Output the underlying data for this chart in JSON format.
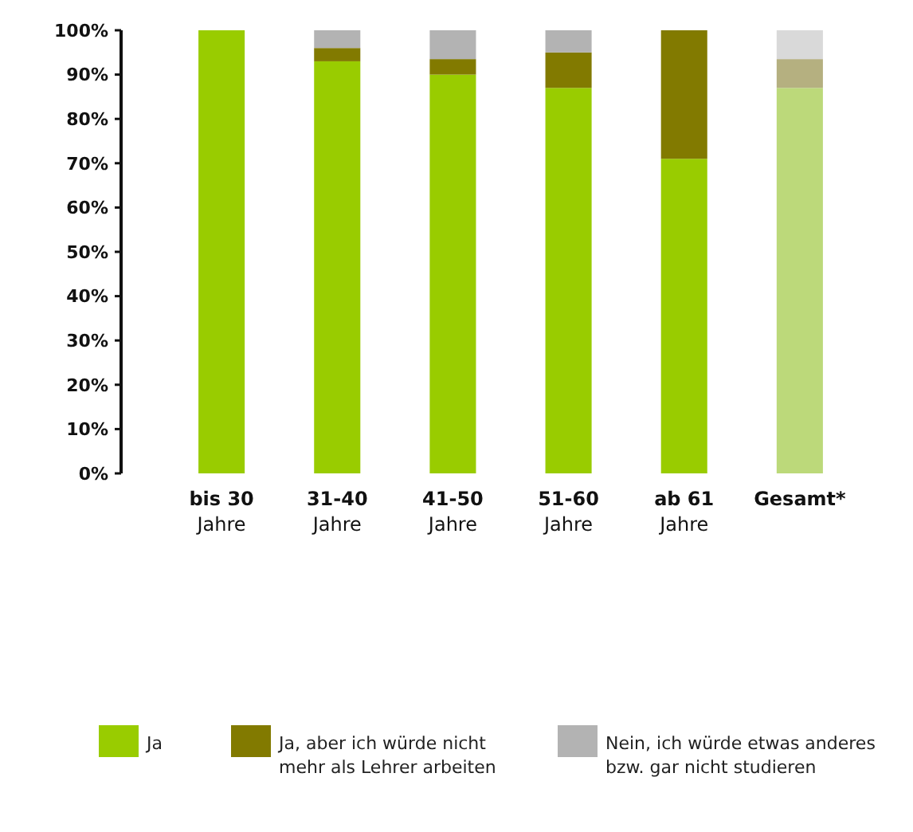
{
  "chart_data": {
    "type": "bar",
    "stacked": true,
    "categories": [
      "bis 30\nJahre",
      "31-40\nJahre",
      "41-50\nJahre",
      "51-60\nJahre",
      "ab 61\nJahre",
      "Gesamt*"
    ],
    "series": [
      {
        "name": "Ja",
        "color": "#99cc00",
        "colors": [
          "#99cc00",
          "#99cc00",
          "#99cc00",
          "#99cc00",
          "#99cc00",
          "#bcd97a"
        ],
        "values": [
          100,
          93,
          90,
          87,
          71,
          87
        ]
      },
      {
        "name": "Ja, aber ich würde nicht\nmehr als Lehrer arbeiten",
        "color": "#827a00",
        "colors": [
          "#827a00",
          "#827a00",
          "#827a00",
          "#827a00",
          "#827a00",
          "#b5b080"
        ],
        "values": [
          0,
          3,
          3.5,
          8,
          29,
          6.5
        ]
      },
      {
        "name": "Nein, ich würde etwas anderes\nbzw. gar nicht studieren",
        "color": "#b3b3b3",
        "colors": [
          "#b3b3b3",
          "#b3b3b3",
          "#b3b3b3",
          "#b3b3b3",
          "#b3b3b3",
          "#d9d9d9"
        ],
        "values": [
          0,
          4,
          6.5,
          5,
          0,
          6.5
        ]
      }
    ],
    "ylim": [
      0,
      100
    ],
    "yticks": [
      {
        "value": 0,
        "label": "0%"
      },
      {
        "value": 10,
        "label": "10%"
      },
      {
        "value": 20,
        "label": "20%"
      },
      {
        "value": 30,
        "label": "30%"
      },
      {
        "value": 40,
        "label": "40%"
      },
      {
        "value": 50,
        "label": "50%"
      },
      {
        "value": 60,
        "label": "60%"
      },
      {
        "value": 70,
        "label": "70%"
      },
      {
        "value": 80,
        "label": "80%"
      },
      {
        "value": 90,
        "label": "90%"
      },
      {
        "value": 100,
        "label": "100%"
      }
    ],
    "grid": false,
    "legend": "bottom"
  }
}
